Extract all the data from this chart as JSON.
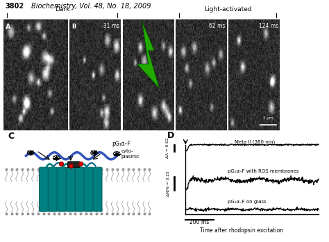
{
  "title_num": "3802",
  "title_text": "Biochemistry, Vol. 48, No. 18, 2009",
  "dark_label": "Dark",
  "light_label": "Light-activated",
  "time_B": "-31 ms",
  "time_62": "62 ms",
  "time_124": "124 ms",
  "scale_bar_text": "2 μm",
  "panel_D_xlabel": "Time after rhodopsin excitation",
  "panel_D_xscale": "200 ms",
  "panel_D_ylabel1": "ΔA = 0.02",
  "panel_D_ylabel2": "ΔN/N = 0.25",
  "panel_D_label1": "Meta II (380 nm)",
  "panel_D_label2": "pG₁α–F with ROS membranes",
  "panel_D_label3": "pG₁α–F on glass",
  "panel_C_label1": "pG₁α–F",
  "panel_C_label2": "cyto-\nplasmic",
  "bg_color": "#ffffff",
  "helix_color": "#008080",
  "gprotein_color": "#3355bb",
  "noise_seed": 42
}
